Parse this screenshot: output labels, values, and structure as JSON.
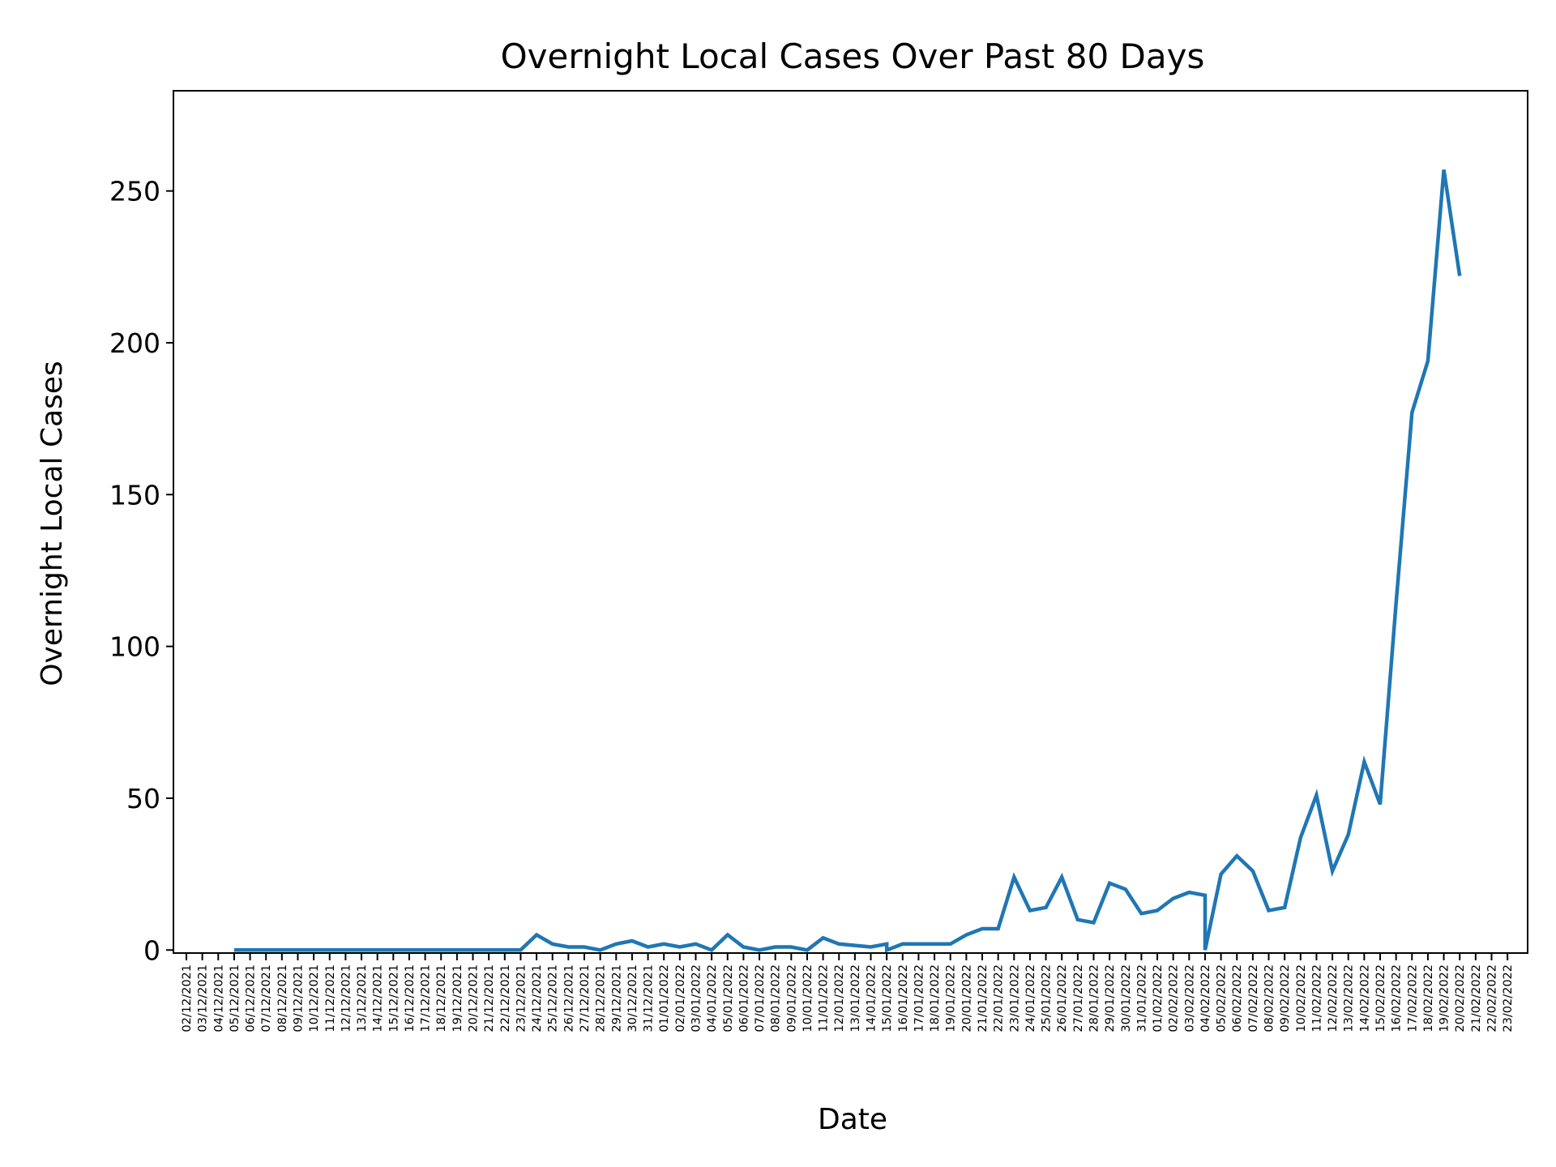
{
  "chart_data": {
    "type": "line",
    "title": "Overnight Local Cases Over Past 80 Days",
    "xlabel": "Date",
    "ylabel": "Overnight Local Cases",
    "grid": false,
    "legend": "none",
    "ylim": [
      -1,
      283
    ],
    "yticks": [
      0,
      50,
      100,
      150,
      200,
      250
    ],
    "xlim": [
      "02/12/2021",
      "23/02/2022"
    ],
    "x_ticks": [
      "02/12/2021",
      "03/12/2021",
      "04/12/2021",
      "05/12/2021",
      "06/12/2021",
      "07/12/2021",
      "08/12/2021",
      "09/12/2021",
      "10/12/2021",
      "11/12/2021",
      "12/12/2021",
      "13/12/2021",
      "14/12/2021",
      "15/12/2021",
      "16/12/2021",
      "17/12/2021",
      "18/12/2021",
      "19/12/2021",
      "20/12/2021",
      "21/12/2021",
      "22/12/2021",
      "23/12/2021",
      "24/12/2021",
      "25/12/2021",
      "26/12/2021",
      "27/12/2021",
      "28/12/2021",
      "29/12/2021",
      "30/12/2021",
      "31/12/2021",
      "01/01/2022",
      "02/01/2022",
      "03/01/2022",
      "04/01/2022",
      "05/01/2022",
      "06/01/2022",
      "07/01/2022",
      "08/01/2022",
      "09/01/2022",
      "10/01/2022",
      "11/01/2022",
      "12/01/2022",
      "13/01/2022",
      "14/01/2022",
      "15/01/2022",
      "16/01/2022",
      "17/01/2022",
      "18/01/2022",
      "19/01/2022",
      "20/01/2022",
      "21/01/2022",
      "22/01/2022",
      "23/01/2022",
      "24/01/2022",
      "25/01/2022",
      "26/01/2022",
      "27/01/2022",
      "28/01/2022",
      "29/01/2022",
      "30/01/2022",
      "31/01/2022",
      "01/02/2022",
      "02/02/2022",
      "03/02/2022",
      "04/02/2022",
      "05/02/2022",
      "06/02/2022",
      "07/02/2022",
      "08/02/2022",
      "09/02/2022",
      "10/02/2022",
      "11/02/2022",
      "12/02/2022",
      "13/02/2022",
      "14/02/2022",
      "15/02/2022",
      "16/02/2022",
      "17/02/2022",
      "18/02/2022",
      "19/02/2022",
      "20/02/2022",
      "21/02/2022",
      "22/02/2022",
      "23/02/2022"
    ],
    "series": [
      {
        "color": "#1f77b4",
        "points": [
          [
            "05/12/2021",
            0
          ],
          [
            "06/12/2021",
            0
          ],
          [
            "07/12/2021",
            0
          ],
          [
            "08/12/2021",
            0
          ],
          [
            "09/12/2021",
            0
          ],
          [
            "10/12/2021",
            0
          ],
          [
            "11/12/2021",
            0
          ],
          [
            "12/12/2021",
            0
          ],
          [
            "13/12/2021",
            0
          ],
          [
            "14/12/2021",
            0
          ],
          [
            "15/12/2021",
            0
          ],
          [
            "16/12/2021",
            0
          ],
          [
            "17/12/2021",
            0
          ],
          [
            "18/12/2021",
            0
          ],
          [
            "19/12/2021",
            0
          ],
          [
            "20/12/2021",
            0
          ],
          [
            "21/12/2021",
            0
          ],
          [
            "22/12/2021",
            0
          ],
          [
            "23/12/2021",
            0
          ],
          [
            "24/12/2021",
            5
          ],
          [
            "25/12/2021",
            2
          ],
          [
            "26/12/2021",
            1
          ],
          [
            "27/12/2021",
            1
          ],
          [
            "28/12/2021",
            0
          ],
          [
            "29/12/2021",
            2
          ],
          [
            "30/12/2021",
            3
          ],
          [
            "31/12/2021",
            1
          ],
          [
            "01/01/2022",
            2
          ],
          [
            "02/01/2022",
            1
          ],
          [
            "03/01/2022",
            2
          ],
          [
            "04/01/2022",
            0
          ],
          [
            "05/01/2022",
            5
          ],
          [
            "06/01/2022",
            1
          ],
          [
            "07/01/2022",
            0
          ],
          [
            "08/01/2022",
            1
          ],
          [
            "09/01/2022",
            1
          ],
          [
            "10/01/2022",
            0
          ],
          [
            "11/01/2022",
            4
          ],
          [
            "12/01/2022",
            2
          ],
          [
            "13/01/2022",
            1.5
          ],
          [
            "14/01/2022",
            1
          ],
          [
            "15/01/2022",
            2
          ],
          [
            "15/01/2022",
            0
          ],
          [
            "16/01/2022",
            2
          ],
          [
            "17/01/2022",
            2
          ],
          [
            "18/01/2022",
            2
          ],
          [
            "19/01/2022",
            2
          ],
          [
            "20/01/2022",
            5
          ],
          [
            "21/01/2022",
            7
          ],
          [
            "22/01/2022",
            7
          ],
          [
            "23/01/2022",
            24
          ],
          [
            "24/01/2022",
            13
          ],
          [
            "25/01/2022",
            14
          ],
          [
            "26/01/2022",
            24
          ],
          [
            "27/01/2022",
            10
          ],
          [
            "28/01/2022",
            9
          ],
          [
            "29/01/2022",
            22
          ],
          [
            "30/01/2022",
            20
          ],
          [
            "31/01/2022",
            12
          ],
          [
            "01/02/2022",
            13
          ],
          [
            "02/02/2022",
            17
          ],
          [
            "03/02/2022",
            19
          ],
          [
            "04/02/2022",
            18
          ],
          [
            "04/02/2022",
            0
          ],
          [
            "05/02/2022",
            25
          ],
          [
            "06/02/2022",
            31
          ],
          [
            "07/02/2022",
            26
          ],
          [
            "08/02/2022",
            13
          ],
          [
            "09/02/2022",
            14
          ],
          [
            "10/02/2022",
            37
          ],
          [
            "11/02/2022",
            51
          ],
          [
            "12/02/2022",
            26
          ],
          [
            "13/02/2022",
            38
          ],
          [
            "14/02/2022",
            62
          ],
          [
            "15/02/2022",
            48
          ],
          [
            "16/02/2022",
            114
          ],
          [
            "17/02/2022",
            177
          ],
          [
            "18/02/2022",
            194
          ],
          [
            "19/02/2022",
            257
          ],
          [
            "20/02/2022",
            222
          ]
        ]
      }
    ]
  }
}
